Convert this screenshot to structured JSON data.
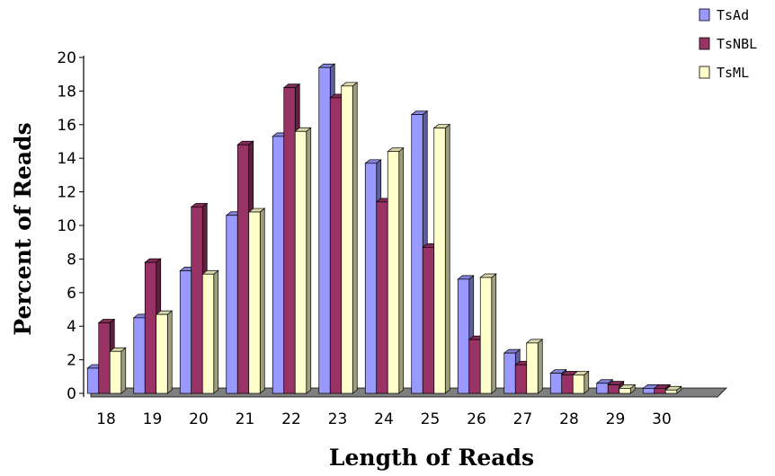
{
  "chart_data": {
    "type": "bar",
    "title": "",
    "xlabel": "Length of Reads",
    "ylabel": "Percent of Reads",
    "categories": [
      "18",
      "19",
      "20",
      "21",
      "22",
      "23",
      "24",
      "25",
      "26",
      "27",
      "28",
      "29",
      "30"
    ],
    "ylim": [
      0,
      20
    ],
    "yticks": [
      0,
      2,
      4,
      6,
      8,
      10,
      12,
      14,
      16,
      18,
      20
    ],
    "grid": false,
    "legend_position": "top-right",
    "series": [
      {
        "name": "TsAd",
        "color": "#9999ff",
        "values": [
          1.5,
          4.5,
          7.3,
          10.6,
          15.3,
          19.4,
          13.7,
          16.6,
          6.8,
          2.4,
          1.2,
          0.6,
          0.3
        ]
      },
      {
        "name": "TsNBL",
        "color": "#993366",
        "values": [
          4.2,
          7.8,
          11.1,
          14.8,
          18.2,
          17.6,
          11.4,
          8.7,
          3.2,
          1.7,
          1.1,
          0.5,
          0.3
        ]
      },
      {
        "name": "TsML",
        "color": "#ffffcc",
        "values": [
          2.5,
          4.7,
          7.1,
          10.8,
          15.6,
          18.3,
          14.4,
          15.8,
          6.9,
          3.0,
          1.1,
          0.3,
          0.2
        ]
      }
    ]
  }
}
